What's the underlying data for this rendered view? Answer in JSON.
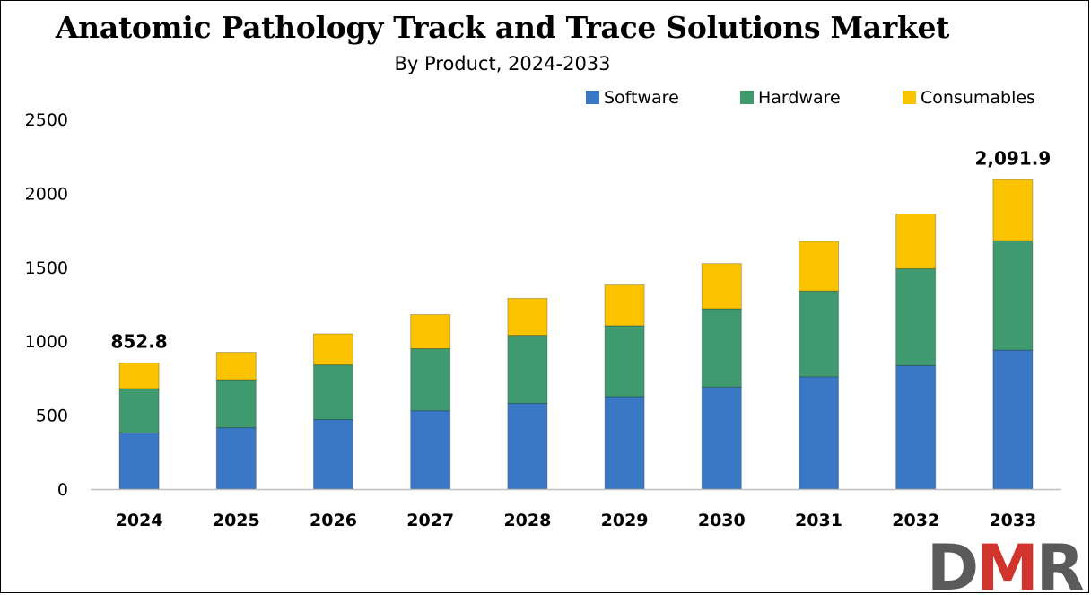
{
  "title": "Anatomic Pathology Track and Trace Solutions Market",
  "subtitle": "By Product, 2024-2033",
  "logo_text": "DMR",
  "colors": {
    "software": "#3a78c6",
    "hardware": "#3f9a6f",
    "consumables": "#fcc400",
    "axis": "#bfbfbf",
    "logo_dark": "#5a5a5a",
    "logo_red": "#d0342c"
  },
  "chart_data": {
    "type": "bar",
    "stacked": true,
    "title": "Anatomic Pathology Track and Trace Solutions Market",
    "subtitle": "By Product, 2024-2033",
    "xlabel": "",
    "ylabel": "",
    "ylim": [
      0,
      2500
    ],
    "yticks": [
      0,
      500,
      1000,
      1500,
      2000,
      2500
    ],
    "categories": [
      "2024",
      "2025",
      "2026",
      "2027",
      "2028",
      "2029",
      "2030",
      "2031",
      "2032",
      "2033"
    ],
    "series": [
      {
        "name": "Software",
        "color": "#3a78c6",
        "values": [
          380,
          415,
          470,
          530,
          580,
          625,
          690,
          760,
          835,
          940
        ]
      },
      {
        "name": "Hardware",
        "color": "#3f9a6f",
        "values": [
          300,
          325,
          370,
          420,
          460,
          480,
          530,
          580,
          655,
          740
        ]
      },
      {
        "name": "Consumables",
        "color": "#fcc400",
        "values": [
          172.8,
          185,
          210,
          230,
          250,
          275,
          305,
          335,
          370,
          411.9
        ]
      }
    ],
    "annotations": [
      {
        "category": "2024",
        "text": "852.8"
      },
      {
        "category": "2033",
        "text": "2,091.9"
      }
    ],
    "grid": false,
    "legend_position": "top-right"
  }
}
